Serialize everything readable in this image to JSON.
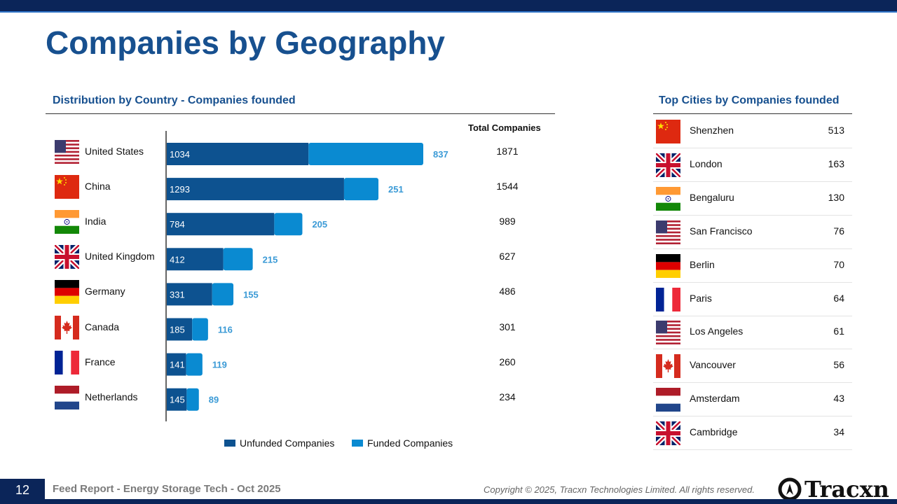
{
  "page": {
    "title": "Companies by Geography",
    "page_number": "12",
    "footer_title": "Feed Report - Energy Storage Tech - Oct 2025",
    "copyright": "Copyright © 2025, Tracxn Technologies Limited. All rights reserved.",
    "logo_text": "Tracxn"
  },
  "colors": {
    "unfunded": "#0d5290",
    "funded": "#0a8ad1",
    "title": "#17508f"
  },
  "country_section": {
    "title": "Distribution by Country - Companies founded",
    "total_header": "Total Companies"
  },
  "city_section": {
    "title": "Top Cities by Companies founded"
  },
  "chart_data": {
    "type": "bar",
    "orientation": "horizontal",
    "stacked": true,
    "categories": [
      "United States",
      "China",
      "India",
      "United Kingdom",
      "Germany",
      "Canada",
      "France",
      "Netherlands"
    ],
    "series": [
      {
        "name": "Unfunded Companies",
        "values": [
          1034,
          1293,
          784,
          412,
          331,
          185,
          141,
          145
        ]
      },
      {
        "name": "Funded Companies",
        "values": [
          837,
          251,
          205,
          215,
          155,
          116,
          119,
          89
        ]
      }
    ],
    "totals": [
      1871,
      1544,
      989,
      627,
      486,
      301,
      260,
      234
    ],
    "legend": "bottom"
  },
  "countries": [
    {
      "name": "United States",
      "flag": "us-flag",
      "total": "1871"
    },
    {
      "name": "China",
      "flag": "china-flag",
      "total": "1544"
    },
    {
      "name": "India",
      "flag": "india-flag",
      "total": "989"
    },
    {
      "name": "United Kingdom",
      "flag": "uk-flag",
      "total": "627"
    },
    {
      "name": "Germany",
      "flag": "germany-flag",
      "total": "486"
    },
    {
      "name": "Canada",
      "flag": "canada-flag",
      "total": "301"
    },
    {
      "name": "France",
      "flag": "france-flag",
      "total": "260"
    },
    {
      "name": "Netherlands",
      "flag": "netherlands-flag",
      "total": "234"
    }
  ],
  "cities": [
    {
      "name": "Shenzhen",
      "flag": "china-flag",
      "value": "513"
    },
    {
      "name": "London",
      "flag": "uk-flag",
      "value": "163"
    },
    {
      "name": "Bengaluru",
      "flag": "india-flag",
      "value": "130"
    },
    {
      "name": "San Francisco",
      "flag": "us-flag",
      "value": "76"
    },
    {
      "name": "Berlin",
      "flag": "germany-flag",
      "value": "70"
    },
    {
      "name": "Paris",
      "flag": "france-flag",
      "value": "64"
    },
    {
      "name": "Los Angeles",
      "flag": "us-flag",
      "value": "61"
    },
    {
      "name": "Vancouver",
      "flag": "canada-flag",
      "value": "56"
    },
    {
      "name": "Amsterdam",
      "flag": "netherlands-flag",
      "value": "43"
    },
    {
      "name": "Cambridge",
      "flag": "uk-flag",
      "value": "34"
    }
  ]
}
